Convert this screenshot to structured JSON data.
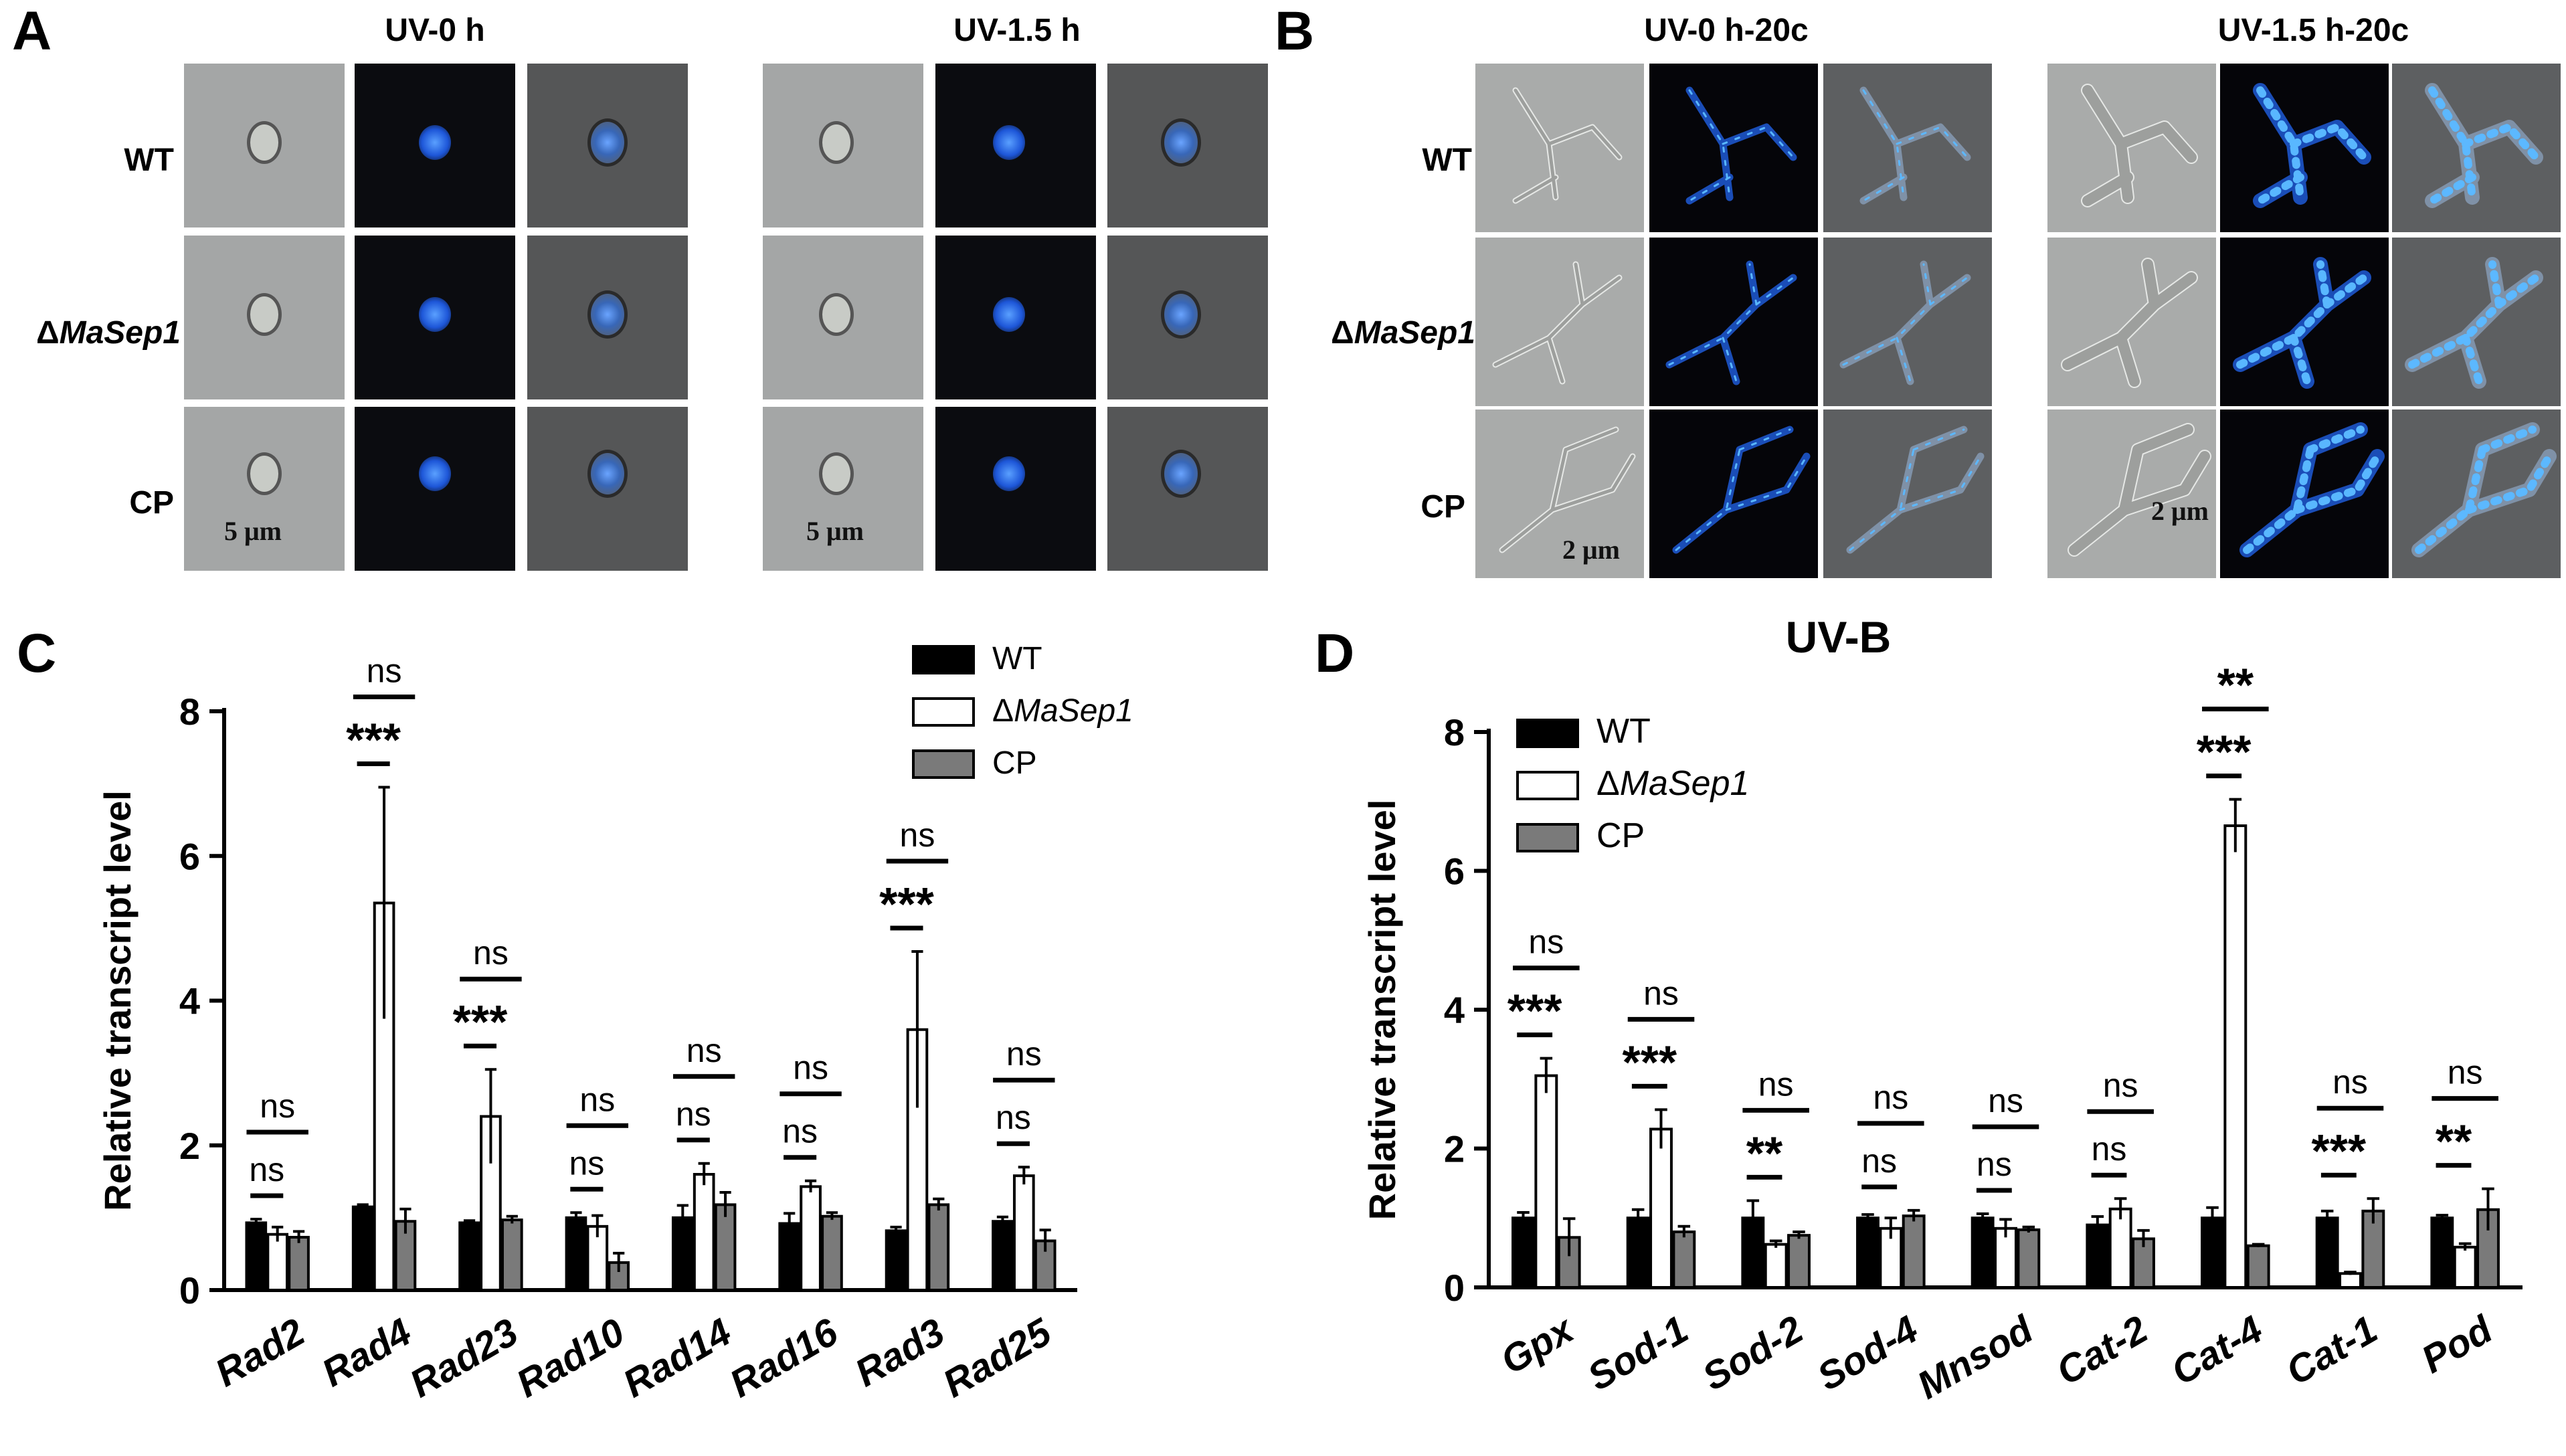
{
  "panelA": {
    "letter": "A",
    "conditions": [
      "UV-0 h",
      "UV-1.5 h"
    ],
    "rows": [
      "WT",
      "ΔMaSep1",
      "CP"
    ],
    "scale_bar": "5 μm"
  },
  "panelB": {
    "letter": "B",
    "conditions": [
      "UV-0 h-20c",
      "UV-1.5 h-20c"
    ],
    "rows": [
      "WT",
      "ΔMaSep1",
      "CP"
    ],
    "scale_bar": "2 μm"
  },
  "colors": {
    "WT": "#000000",
    "ΔMaSep1": "#ffffff",
    "CP": "#7a7a7a"
  },
  "chart_data": [
    {
      "panel": "C",
      "type": "bar",
      "title": "",
      "ylabel": "Relative transcript level",
      "ylim": [
        0,
        8
      ],
      "yticks": [
        0,
        2,
        4,
        6,
        8
      ],
      "legend_placement": "top-right",
      "categories": [
        "Rad2",
        "Rad4",
        "Rad23",
        "Rad10",
        "Rad14",
        "Rad16",
        "Rad3",
        "Rad25"
      ],
      "series": [
        {
          "name": "WT",
          "values": [
            0.93,
            1.15,
            0.93,
            1.0,
            1.0,
            0.92,
            0.82,
            0.95
          ],
          "errors": [
            0.05,
            0.03,
            0.03,
            0.07,
            0.17,
            0.14,
            0.05,
            0.06
          ]
        },
        {
          "name": "ΔMaSep1",
          "values": [
            0.77,
            5.35,
            2.4,
            0.88,
            1.6,
            1.43,
            3.6,
            1.58
          ],
          "errors": [
            0.1,
            1.6,
            0.65,
            0.15,
            0.15,
            0.08,
            1.08,
            0.12
          ]
        },
        {
          "name": "CP",
          "values": [
            0.73,
            0.95,
            0.97,
            0.38,
            1.18,
            1.02,
            1.18,
            0.68
          ],
          "errors": [
            0.08,
            0.17,
            0.05,
            0.13,
            0.17,
            0.05,
            0.08,
            0.15
          ]
        }
      ],
      "annotations": [
        {
          "category": "Rad2",
          "lower": "ns",
          "upper": "ns"
        },
        {
          "category": "Rad4",
          "lower": "***",
          "upper": "ns"
        },
        {
          "category": "Rad23",
          "lower": "***",
          "upper": "ns"
        },
        {
          "category": "Rad10",
          "lower": "ns",
          "upper": "ns"
        },
        {
          "category": "Rad14",
          "lower": "ns",
          "upper": "ns"
        },
        {
          "category": "Rad16",
          "lower": "ns",
          "upper": "ns"
        },
        {
          "category": "Rad3",
          "lower": "***",
          "upper": "ns"
        },
        {
          "category": "Rad25",
          "lower": "ns",
          "upper": "ns"
        }
      ]
    },
    {
      "panel": "D",
      "type": "bar",
      "title": "UV-B",
      "ylabel": "Relative transcript level",
      "ylim": [
        0,
        8
      ],
      "yticks": [
        0,
        2,
        4,
        6,
        8
      ],
      "legend_placement": "top-left",
      "categories": [
        "Gpx",
        "Sod-1",
        "Sod-2",
        "Sod-4",
        "Mnsod",
        "Cat-2",
        "Cat-4",
        "Cat-1",
        "Pod"
      ],
      "series": [
        {
          "name": "WT",
          "values": [
            1.0,
            1.0,
            1.0,
            1.0,
            1.0,
            0.9,
            1.0,
            1.0,
            1.0
          ],
          "errors": [
            0.08,
            0.12,
            0.25,
            0.05,
            0.06,
            0.12,
            0.15,
            0.1,
            0.04
          ]
        },
        {
          "name": "ΔMaSep1",
          "values": [
            3.05,
            2.28,
            0.62,
            0.85,
            0.85,
            1.13,
            6.65,
            0.2,
            0.58
          ],
          "errors": [
            0.25,
            0.28,
            0.05,
            0.15,
            0.13,
            0.15,
            0.38,
            0.02,
            0.05
          ]
        },
        {
          "name": "CP",
          "values": [
            0.72,
            0.8,
            0.75,
            1.03,
            0.83,
            0.7,
            0.6,
            1.1,
            1.12
          ],
          "errors": [
            0.27,
            0.08,
            0.05,
            0.08,
            0.04,
            0.12,
            0.02,
            0.18,
            0.3
          ]
        }
      ],
      "annotations": [
        {
          "category": "Gpx",
          "lower": "***",
          "upper": "ns"
        },
        {
          "category": "Sod-1",
          "lower": "***",
          "upper": "ns"
        },
        {
          "category": "Sod-2",
          "lower": "**",
          "upper": "ns"
        },
        {
          "category": "Sod-4",
          "lower": "ns",
          "upper": "ns"
        },
        {
          "category": "Mnsod",
          "lower": "ns",
          "upper": "ns"
        },
        {
          "category": "Cat-2",
          "lower": "ns",
          "upper": "ns"
        },
        {
          "category": "Cat-4",
          "lower": "***",
          "upper": "**"
        },
        {
          "category": "Cat-1",
          "lower": "***",
          "upper": "ns"
        },
        {
          "category": "Pod",
          "lower": "**",
          "upper": "ns"
        }
      ]
    }
  ],
  "chart_letters": [
    "C",
    "D"
  ]
}
